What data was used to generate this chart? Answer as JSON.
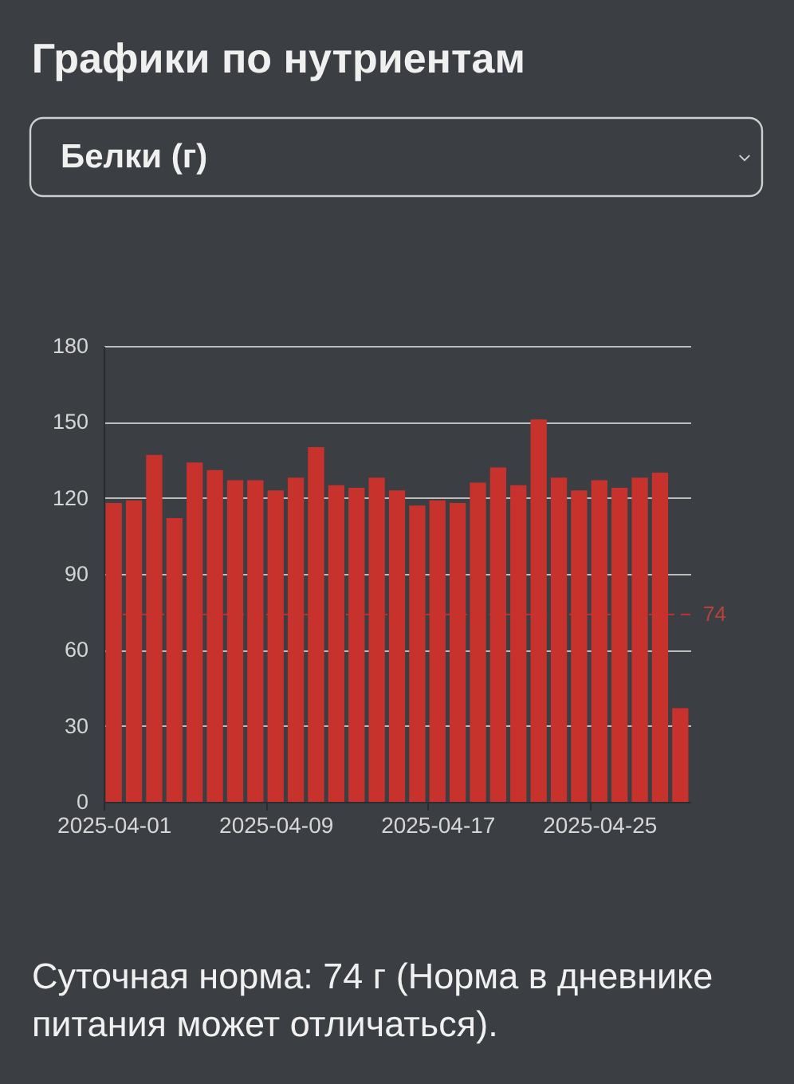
{
  "chart_data": {
    "type": "bar",
    "title": "Графики по нутриентам",
    "subtitle": "Белки (г)",
    "categories": [
      "2025-04-01",
      null,
      null,
      null,
      null,
      null,
      null,
      null,
      "2025-04-09",
      null,
      null,
      null,
      null,
      null,
      null,
      null,
      "2025-04-17",
      null,
      null,
      null,
      null,
      null,
      null,
      null,
      "2025-04-25",
      null,
      null,
      null,
      null
    ],
    "values": [
      118,
      119,
      137,
      112,
      134,
      131,
      127,
      127,
      123,
      128,
      140,
      125,
      124,
      128,
      123,
      117,
      119,
      118,
      126,
      132,
      125,
      151,
      128,
      123,
      127,
      124,
      128,
      130,
      37
    ],
    "color": "#c8322d",
    "ylim": [
      0,
      180
    ],
    "yticks": [
      0,
      30,
      60,
      90,
      120,
      150,
      180
    ],
    "grid": "y",
    "ref_lines": [
      {
        "axis": "y",
        "value": 74,
        "label": "74",
        "color": "#c8322d",
        "line_style": "dashed"
      }
    ],
    "annotations": [
      "Суточная норма: 74 г (Норма в дневнике питания может отличаться)."
    ]
  }
}
